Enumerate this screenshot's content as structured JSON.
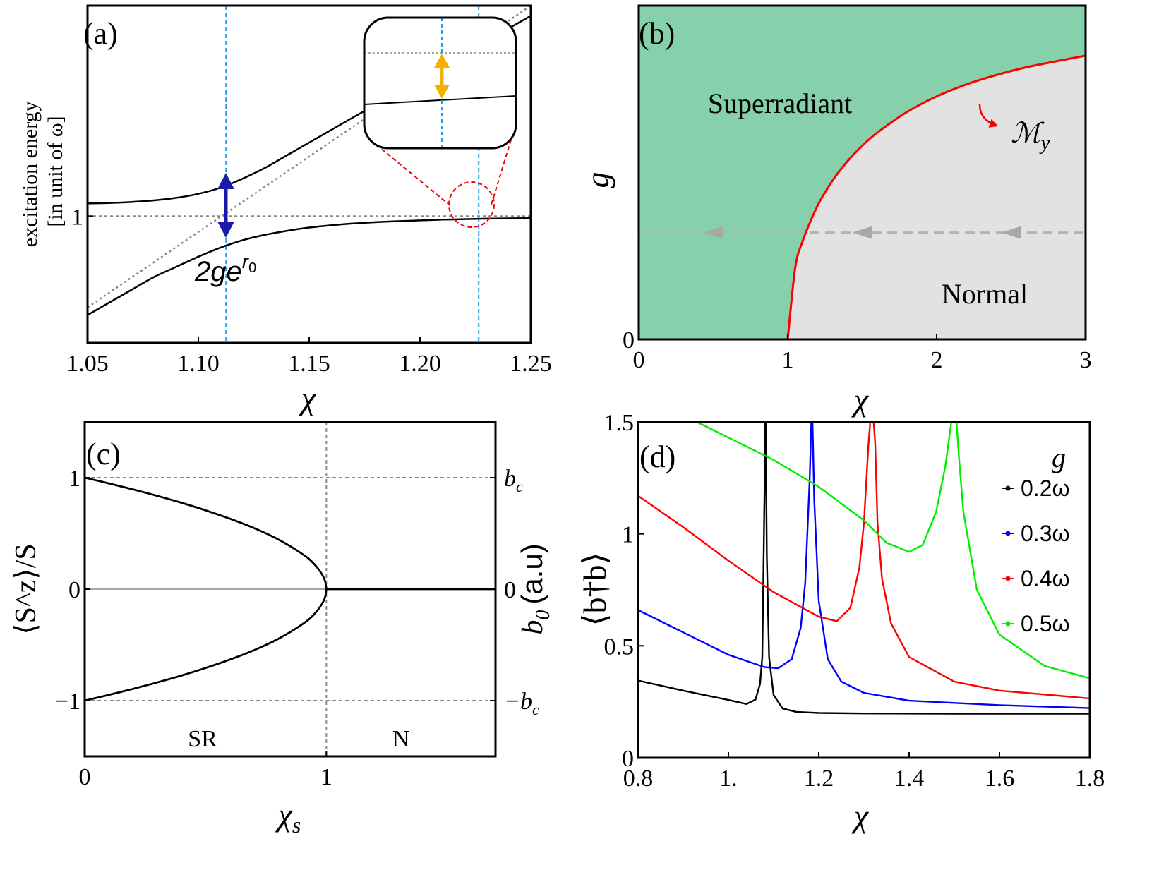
{
  "chart_data": [
    {
      "panel": "(a)",
      "type": "line",
      "xlabel": "χ",
      "ylabel": [
        "excitation energy",
        "[in unit of ω]"
      ],
      "xlim": [
        1.05,
        1.25
      ],
      "ylim": [
        0.5,
        1.83
      ],
      "xticks": [
        "1.05",
        "1.10",
        "1.15",
        "1.20",
        "1.25"
      ],
      "xtick_values": [
        1.05,
        1.1,
        1.15,
        1.2,
        1.25
      ],
      "yticks": [
        "1"
      ],
      "ytick_values": [
        1.0
      ],
      "dashed_reference_level": 1.0,
      "vertical_markers": [
        1.1125,
        1.2265
      ],
      "arrow_label": "2ge",
      "arrow_label_sup": "r",
      "arrow_label_sub": "0",
      "series": [
        {
          "role": "upper-branch",
          "x": [
            1.05,
            1.06,
            1.07,
            1.08,
            1.09,
            1.1,
            1.11,
            1.12,
            1.13,
            1.14,
            1.15,
            1.16,
            1.17,
            1.18,
            1.19,
            1.2,
            1.21,
            1.22,
            1.23,
            1.24,
            1.25
          ],
          "values": [
            1.05,
            1.052,
            1.056,
            1.062,
            1.072,
            1.088,
            1.112,
            1.148,
            1.19,
            1.24,
            1.29,
            1.34,
            1.39,
            1.44,
            1.49,
            1.54,
            1.59,
            1.64,
            1.69,
            1.74,
            1.79
          ]
        },
        {
          "role": "lower-branch",
          "x": [
            1.05,
            1.06,
            1.07,
            1.08,
            1.09,
            1.1,
            1.11,
            1.12,
            1.13,
            1.14,
            1.15,
            1.16,
            1.17,
            1.18,
            1.19,
            1.2,
            1.21,
            1.22,
            1.23,
            1.24,
            1.25
          ],
          "values": [
            0.61,
            0.66,
            0.71,
            0.76,
            0.8,
            0.84,
            0.876,
            0.905,
            0.926,
            0.942,
            0.955,
            0.964,
            0.971,
            0.976,
            0.98,
            0.983,
            0.986,
            0.988,
            0.99,
            0.991,
            0.992
          ]
        },
        {
          "role": "bare-dotted",
          "x": [
            1.05,
            1.25
          ],
          "values": [
            0.64,
            1.83
          ]
        }
      ]
    },
    {
      "panel": "(b)",
      "type": "area",
      "xlabel": "χ",
      "ylabel": "g",
      "xlim": [
        0,
        3
      ],
      "xticks": [
        "0",
        "1",
        "2",
        "3"
      ],
      "xtick_values": [
        0,
        1,
        2,
        3
      ],
      "yticks": [
        "0"
      ],
      "regions": [
        "Superradiant",
        "Normal"
      ],
      "boundary_label": "ℳ",
      "boundary_label_sub": "y",
      "colors": {
        "superradiant": "#86d1ab",
        "normal": "#e2e2e2",
        "boundary": "#ff0000"
      },
      "boundary": {
        "x": [
          1.0,
          1.05,
          1.1,
          1.2,
          1.3,
          1.4,
          1.5,
          1.6,
          1.8,
          2.0,
          2.2,
          2.4,
          2.6,
          2.8,
          3.0
        ],
        "values": [
          0,
          0.212,
          0.294,
          0.4,
          0.475,
          0.533,
          0.58,
          0.619,
          0.681,
          0.728,
          0.764,
          0.792,
          0.815,
          0.833,
          0.85
        ]
      },
      "dashed_line_g": 0.32,
      "dashed_arrows_x": [
        0.5,
        1.5,
        2.5
      ]
    },
    {
      "panel": "(c)",
      "type": "line",
      "xlabel": "χ",
      "xlabel_sub": "s",
      "ylabel_left": "⟨S^z⟩/S",
      "ylabel_right": "b",
      "ylabel_right_sub": "0",
      "ylabel_right_suffix": "(a.u)",
      "xlim": [
        0,
        1.7
      ],
      "ylim": [
        -1.5,
        1.5
      ],
      "xticks": [
        "0",
        "1"
      ],
      "xtick_values": [
        0,
        1
      ],
      "yticks_left": [
        "1",
        "0",
        "−1"
      ],
      "ytick_values": [
        1,
        0,
        -1
      ],
      "yticks_right": [
        "b",
        "0",
        "−b"
      ],
      "yticks_right_sub": "c",
      "region_labels": [
        "SR",
        "N"
      ],
      "series": [
        {
          "role": "upper",
          "x": [
            0,
            0.1,
            0.2,
            0.3,
            0.4,
            0.5,
            0.6,
            0.7,
            0.8,
            0.9,
            0.95,
            0.99,
            1.0
          ],
          "values": [
            1,
            0.949,
            0.894,
            0.837,
            0.775,
            0.707,
            0.632,
            0.548,
            0.447,
            0.316,
            0.224,
            0.1,
            0
          ]
        },
        {
          "role": "lower",
          "x": [
            0,
            0.1,
            0.2,
            0.3,
            0.4,
            0.5,
            0.6,
            0.7,
            0.8,
            0.9,
            0.95,
            0.99,
            1.0
          ],
          "values": [
            -1,
            -0.949,
            -0.894,
            -0.837,
            -0.775,
            -0.707,
            -0.632,
            -0.548,
            -0.447,
            -0.316,
            -0.224,
            -0.1,
            0
          ]
        },
        {
          "role": "normal-zero",
          "x": [
            1.0,
            1.7
          ],
          "values": [
            0,
            0
          ]
        }
      ]
    },
    {
      "panel": "(d)",
      "type": "line",
      "xlabel": "χ",
      "ylabel": "⟨b†b⟩",
      "xlim": [
        0.8,
        1.8
      ],
      "ylim": [
        0,
        1.5
      ],
      "xticks": [
        "0.8",
        "1.",
        "1.2",
        "1.4",
        "1.6",
        "1.8"
      ],
      "xtick_values": [
        0.8,
        1.0,
        1.2,
        1.4,
        1.6,
        1.8
      ],
      "yticks": [
        "0",
        "0.5",
        "1",
        "1.5"
      ],
      "ytick_values": [
        0,
        0.5,
        1.0,
        1.5
      ],
      "legend_title": "g",
      "legend_position": "right",
      "series": [
        {
          "name": "0.2ω",
          "color": "#000000",
          "peak": 1.082,
          "x": [
            0.8,
            0.9,
            1.0,
            1.04,
            1.06,
            1.07,
            1.075,
            1.08,
            1.082,
            1.085,
            1.09,
            1.1,
            1.12,
            1.15,
            1.2,
            1.3,
            1.5,
            1.8
          ],
          "values": [
            0.345,
            0.3,
            0.258,
            0.24,
            0.26,
            0.33,
            0.45,
            1.2,
            1.6,
            0.9,
            0.45,
            0.28,
            0.22,
            0.205,
            0.2,
            0.198,
            0.197,
            0.197
          ]
        },
        {
          "name": "0.3ω",
          "color": "#0000ff",
          "peak": 1.185,
          "x": [
            0.8,
            0.9,
            1.0,
            1.08,
            1.11,
            1.14,
            1.16,
            1.17,
            1.18,
            1.185,
            1.19,
            1.2,
            1.22,
            1.25,
            1.3,
            1.4,
            1.6,
            1.8
          ],
          "values": [
            0.66,
            0.56,
            0.46,
            0.405,
            0.4,
            0.44,
            0.58,
            0.78,
            1.25,
            1.6,
            1.15,
            0.7,
            0.44,
            0.34,
            0.29,
            0.255,
            0.235,
            0.222
          ]
        },
        {
          "name": "0.4ω",
          "color": "#ff0000",
          "peak": 1.318,
          "x": [
            0.8,
            0.9,
            1.0,
            1.1,
            1.2,
            1.24,
            1.27,
            1.29,
            1.3,
            1.31,
            1.318,
            1.325,
            1.33,
            1.34,
            1.36,
            1.4,
            1.5,
            1.6,
            1.8
          ],
          "values": [
            1.17,
            1.03,
            0.88,
            0.74,
            0.63,
            0.61,
            0.67,
            0.85,
            1.05,
            1.4,
            1.6,
            1.4,
            1.05,
            0.8,
            0.6,
            0.45,
            0.34,
            0.3,
            0.265
          ]
        },
        {
          "name": "0.5ω",
          "color": "#00ee00",
          "peak": 1.5,
          "x": [
            0.93,
            1.0,
            1.1,
            1.2,
            1.3,
            1.35,
            1.4,
            1.43,
            1.46,
            1.48,
            1.49,
            1.495,
            1.5,
            1.505,
            1.51,
            1.52,
            1.55,
            1.6,
            1.7,
            1.8
          ],
          "values": [
            1.5,
            1.43,
            1.33,
            1.21,
            1.06,
            0.96,
            0.92,
            0.95,
            1.1,
            1.3,
            1.45,
            1.52,
            1.6,
            1.5,
            1.35,
            1.1,
            0.75,
            0.55,
            0.41,
            0.355
          ]
        }
      ]
    }
  ]
}
